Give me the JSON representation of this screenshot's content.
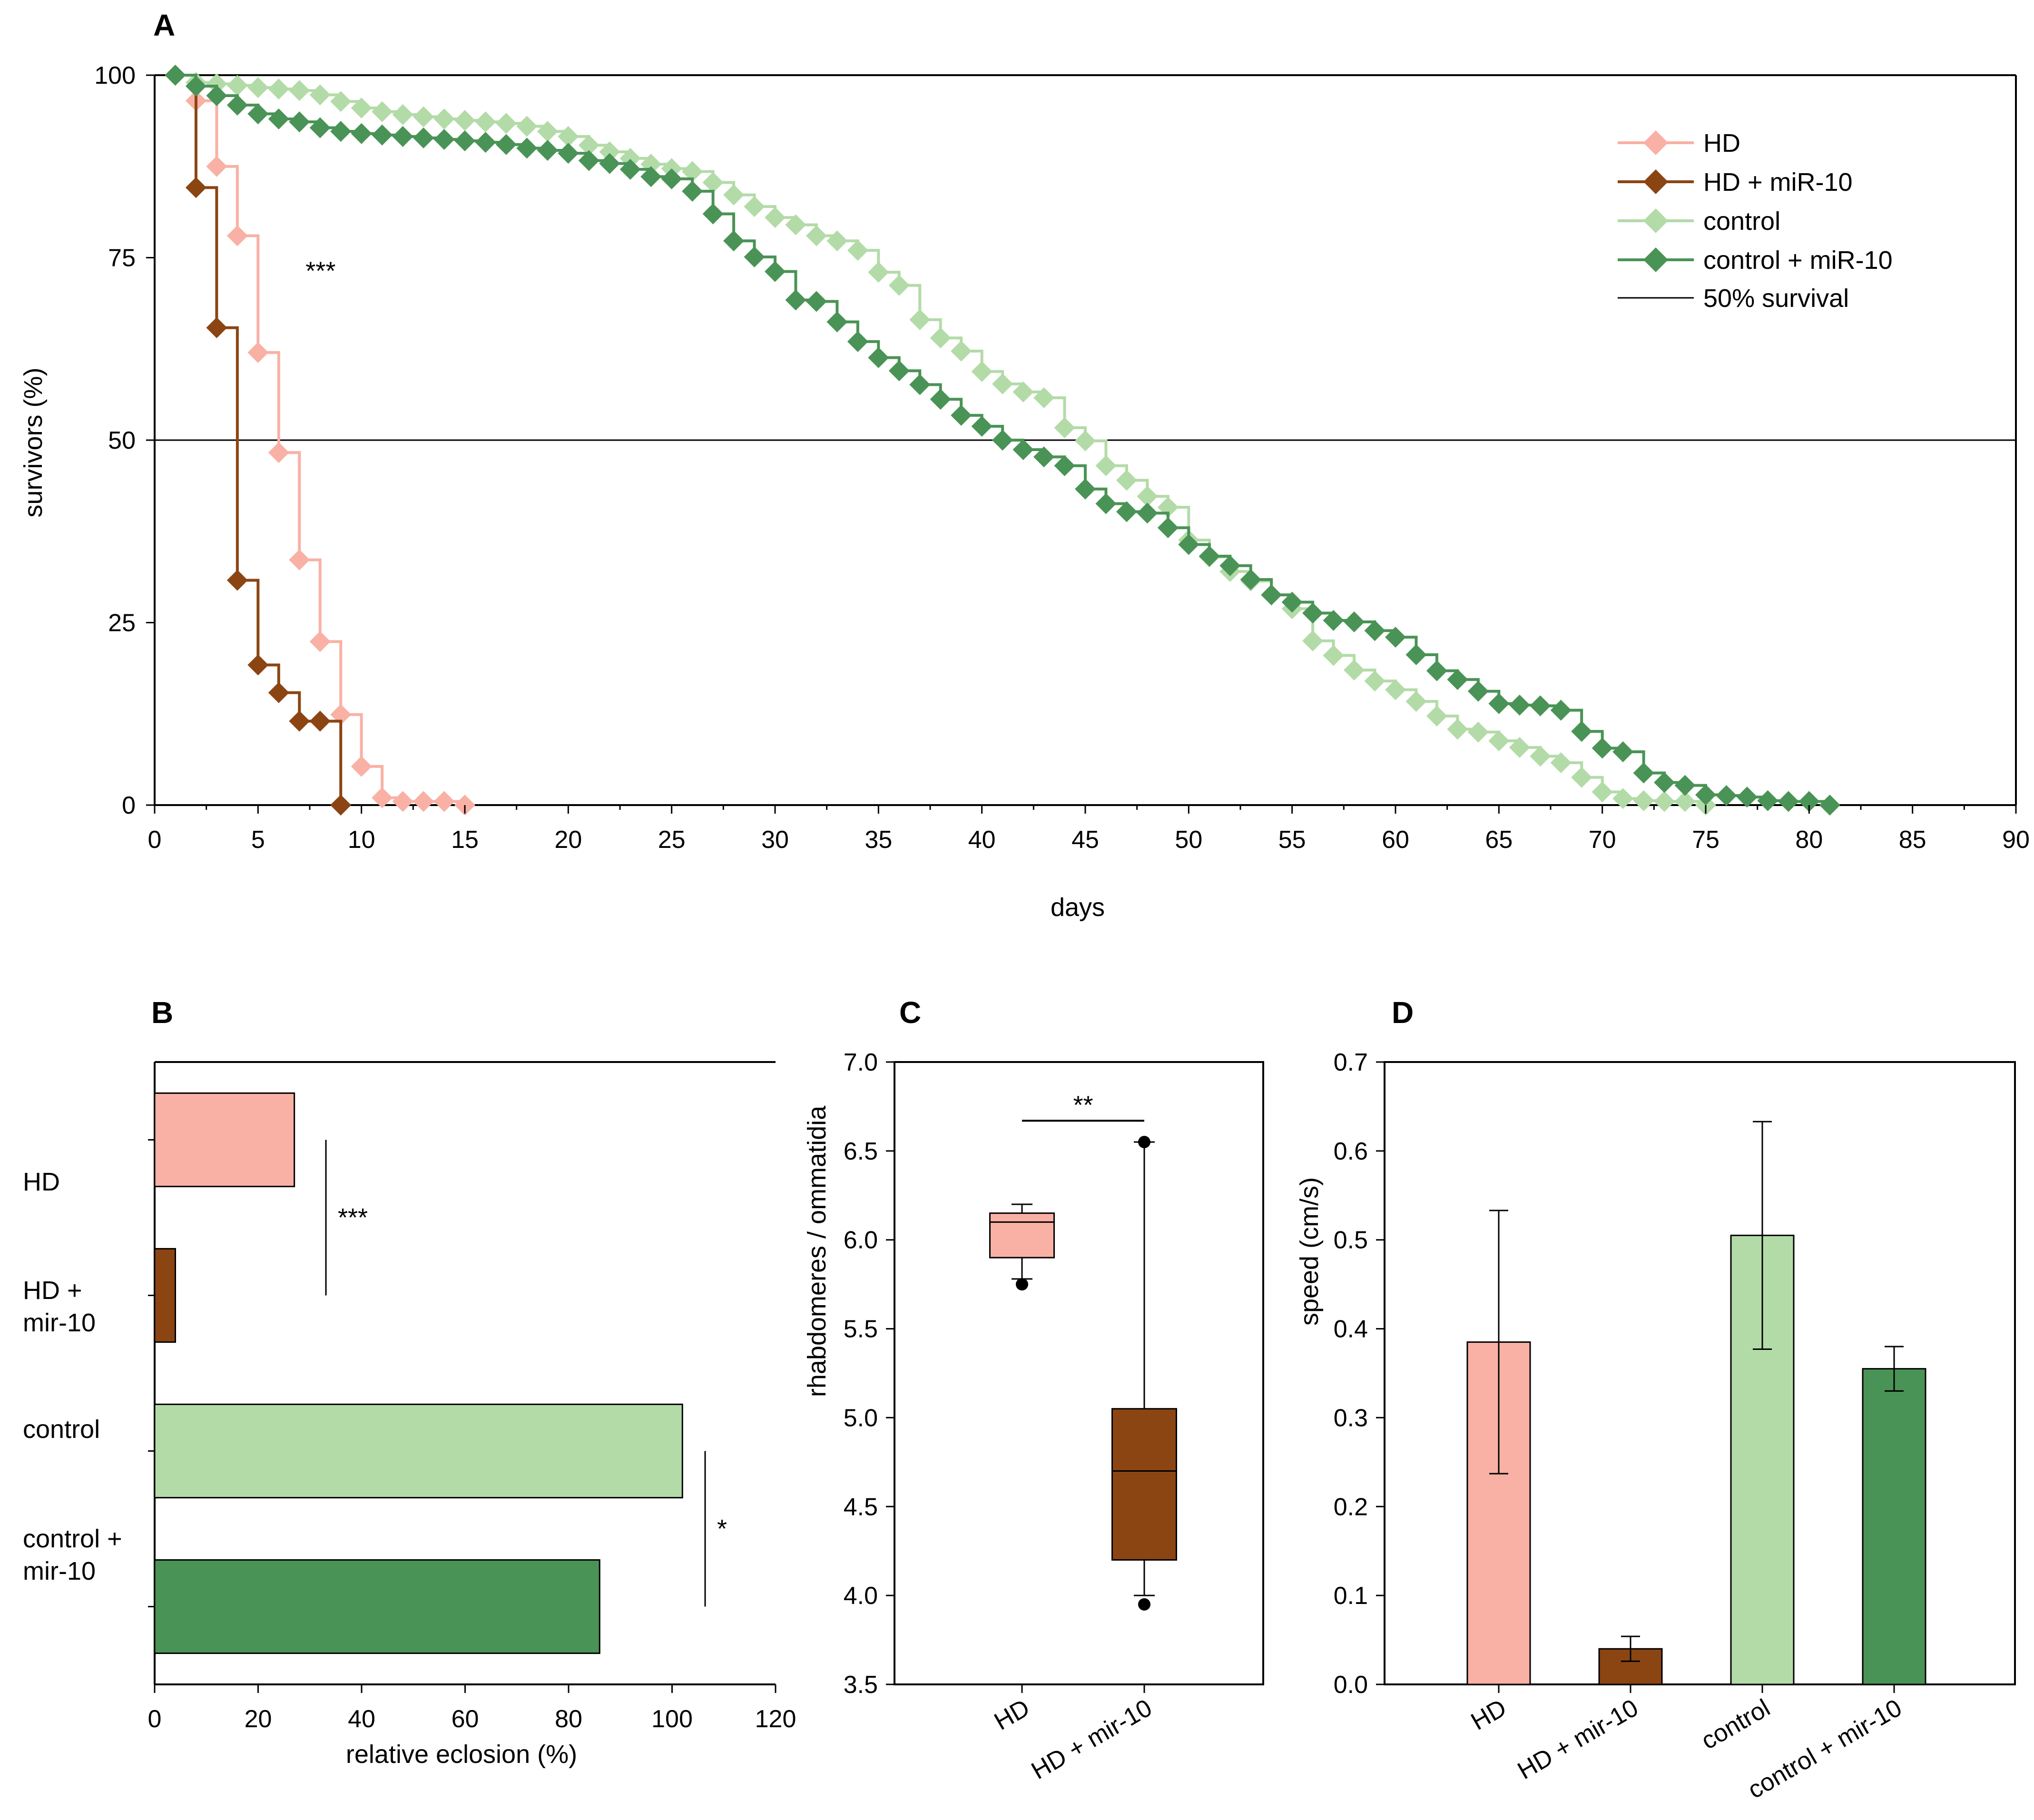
{
  "colors": {
    "hd": "#F9B1A5",
    "hd_mir": "#8B4513",
    "control": "#B3DBA8",
    "control_mir": "#4A9356",
    "black": "#000000"
  },
  "chart_data": [
    {
      "panel": "A",
      "type": "line",
      "step": true,
      "xlabel": "days",
      "ylabel": "survivors (%)",
      "xlim": [
        0,
        90
      ],
      "ylim": [
        0,
        100
      ],
      "xticks": [
        0,
        5,
        10,
        15,
        20,
        25,
        30,
        35,
        40,
        45,
        50,
        55,
        60,
        65,
        70,
        75,
        80,
        85,
        90
      ],
      "yticks": [
        0,
        25,
        50,
        75,
        100
      ],
      "reference_line": {
        "y": 50,
        "label": "50% survival"
      },
      "annotation": {
        "text": "***",
        "x": 7.3,
        "y": 72
      },
      "legend_position": "top-right",
      "series": [
        {
          "name": "HD",
          "color_key": "hd",
          "x": [
            1,
            2,
            3,
            4,
            5,
            6,
            7,
            8,
            9,
            10,
            11,
            12,
            13,
            14,
            15
          ],
          "y": [
            100,
            96.5,
            87.5,
            78,
            62,
            48.3,
            33.6,
            22.4,
            12.4,
            5.3,
            1,
            0.5,
            0.5,
            0.5,
            0
          ]
        },
        {
          "name": "HD + miR-10",
          "color_key": "hd_mir",
          "x": [
            1,
            2,
            3,
            4,
            5,
            6,
            7,
            8,
            9
          ],
          "y": [
            100,
            84.6,
            65.4,
            30.8,
            19.2,
            15.4,
            11.5,
            11.5,
            0
          ]
        },
        {
          "name": "control",
          "color_key": "control",
          "x": [
            1,
            2,
            3,
            4,
            5,
            6,
            7,
            8,
            9,
            10,
            11,
            12,
            13,
            14,
            15,
            16,
            17,
            18,
            19,
            20,
            21,
            22,
            23,
            24,
            25,
            26,
            27,
            28,
            29,
            30,
            31,
            32,
            33,
            34,
            35,
            36,
            37,
            38,
            39,
            40,
            41,
            42,
            43,
            44,
            45,
            46,
            47,
            48,
            49,
            50,
            51,
            52,
            53,
            54,
            55,
            56,
            57,
            58,
            59,
            60,
            61,
            62,
            63,
            64,
            65,
            66,
            67,
            68,
            69,
            70,
            71,
            72,
            73,
            74,
            75
          ],
          "y": [
            100,
            99,
            98.8,
            98.6,
            98.3,
            98.1,
            97.9,
            97.3,
            96.4,
            95.5,
            95,
            94.6,
            94.3,
            94,
            93.8,
            93.6,
            93.4,
            93,
            92.3,
            91.6,
            90.4,
            89.5,
            88.6,
            87.8,
            87.2,
            86.8,
            85.3,
            83.6,
            82,
            80.5,
            79.5,
            78,
            77.3,
            76,
            73,
            71.2,
            66.5,
            64,
            62.2,
            59.4,
            57.7,
            56.6,
            55.8,
            51.7,
            49.9,
            46.5,
            44.5,
            42.3,
            40.8,
            36.3,
            34,
            32,
            30.7,
            28.8,
            26.9,
            22.5,
            20.5,
            18.5,
            17,
            15.8,
            14.2,
            12.2,
            10.4,
            10,
            8.8,
            7.9,
            6.7,
            5.8,
            3.8,
            1.8,
            0.9,
            0.6,
            0.5,
            0.5,
            0
          ]
        },
        {
          "name": "control + miR-10",
          "color_key": "control_mir",
          "x": [
            1,
            2,
            3,
            4,
            5,
            6,
            7,
            8,
            9,
            10,
            11,
            12,
            13,
            14,
            15,
            16,
            17,
            18,
            19,
            20,
            21,
            22,
            23,
            24,
            25,
            26,
            27,
            28,
            29,
            30,
            31,
            32,
            33,
            34,
            35,
            36,
            37,
            38,
            39,
            40,
            41,
            42,
            43,
            44,
            45,
            46,
            47,
            48,
            49,
            50,
            51,
            52,
            53,
            54,
            55,
            56,
            57,
            58,
            59,
            60,
            61,
            62,
            63,
            64,
            65,
            66,
            67,
            68,
            69,
            70,
            71,
            72,
            73,
            74,
            75,
            76,
            77,
            78,
            79,
            80,
            81
          ],
          "y": [
            100,
            98.5,
            97.2,
            95.9,
            94.7,
            94,
            93.6,
            92.8,
            92.3,
            92,
            91.8,
            91.6,
            91.4,
            91.2,
            91,
            90.8,
            90.5,
            90,
            89.7,
            89.3,
            88.3,
            87.9,
            87.1,
            86.1,
            85.8,
            84.1,
            81,
            77.3,
            75.1,
            73.1,
            69.2,
            69,
            66.2,
            63.5,
            61.3,
            59.5,
            57.6,
            55.6,
            53.4,
            51.9,
            50,
            48.7,
            47.7,
            46.5,
            43.3,
            41.3,
            40.2,
            40,
            38,
            35.7,
            34.1,
            32.8,
            30.9,
            28.8,
            27.8,
            26.3,
            25.3,
            25.1,
            23.9,
            23,
            20.6,
            18.4,
            17.2,
            15.6,
            13.9,
            13.7,
            13.6,
            13,
            10.1,
            7.8,
            7.3,
            4.4,
            3.1,
            2.7,
            1.4,
            1.3,
            1.1,
            0.6,
            0.5,
            0.5,
            0
          ]
        }
      ]
    },
    {
      "panel": "B",
      "type": "bar",
      "orientation": "horizontal",
      "xlabel": "relative eclosion (%)",
      "ylabel": "",
      "xlim": [
        0,
        120
      ],
      "xticks": [
        0,
        20,
        40,
        60,
        80,
        100,
        120
      ],
      "categories": [
        "HD",
        "HD +\nmir-10",
        "control",
        "control +\nmir-10"
      ],
      "values": [
        27,
        4,
        102,
        86
      ],
      "color_keys": [
        "hd",
        "hd_mir",
        "control",
        "control_mir"
      ],
      "significance": [
        {
          "between": [
            0,
            1
          ],
          "text": "***"
        },
        {
          "between": [
            2,
            3
          ],
          "text": "*"
        }
      ]
    },
    {
      "panel": "C",
      "type": "box",
      "xlabel": "",
      "ylabel": "rhabdomeres / ommatidia",
      "ylim": [
        3.5,
        7.0
      ],
      "yticks": [
        "3.5",
        "4.0",
        "4.5",
        "5.0",
        "5.5",
        "6.0",
        "6.5",
        "7.0"
      ],
      "categories": [
        "HD",
        "HD + mir-10"
      ],
      "boxes": [
        {
          "whisker_low": 5.78,
          "q1": 5.9,
          "median": 6.1,
          "q3": 6.15,
          "whisker_high": 6.2,
          "outliers": [
            5.75
          ],
          "color_key": "hd"
        },
        {
          "whisker_low": 4.0,
          "q1": 4.2,
          "median": 4.7,
          "q3": 5.05,
          "whisker_high": 6.55,
          "outliers": [
            6.55,
            3.95
          ],
          "color_key": "hd_mir"
        }
      ],
      "significance": {
        "between": [
          0,
          1
        ],
        "text": "**",
        "y": 6.67
      }
    },
    {
      "panel": "D",
      "type": "bar",
      "xlabel": "",
      "ylabel": "speed (cm/s)",
      "ylim": [
        0,
        0.7
      ],
      "yticks": [
        "0.0",
        "0.1",
        "0.2",
        "0.3",
        "0.4",
        "0.5",
        "0.6",
        "0.7"
      ],
      "categories": [
        "HD",
        "HD + mir-10",
        "control",
        "control + mir-10"
      ],
      "values": [
        0.385,
        0.04,
        0.505,
        0.355
      ],
      "errors": [
        0.148,
        0.014,
        0.128,
        0.025
      ],
      "color_keys": [
        "hd",
        "hd_mir",
        "control",
        "control_mir"
      ]
    }
  ]
}
